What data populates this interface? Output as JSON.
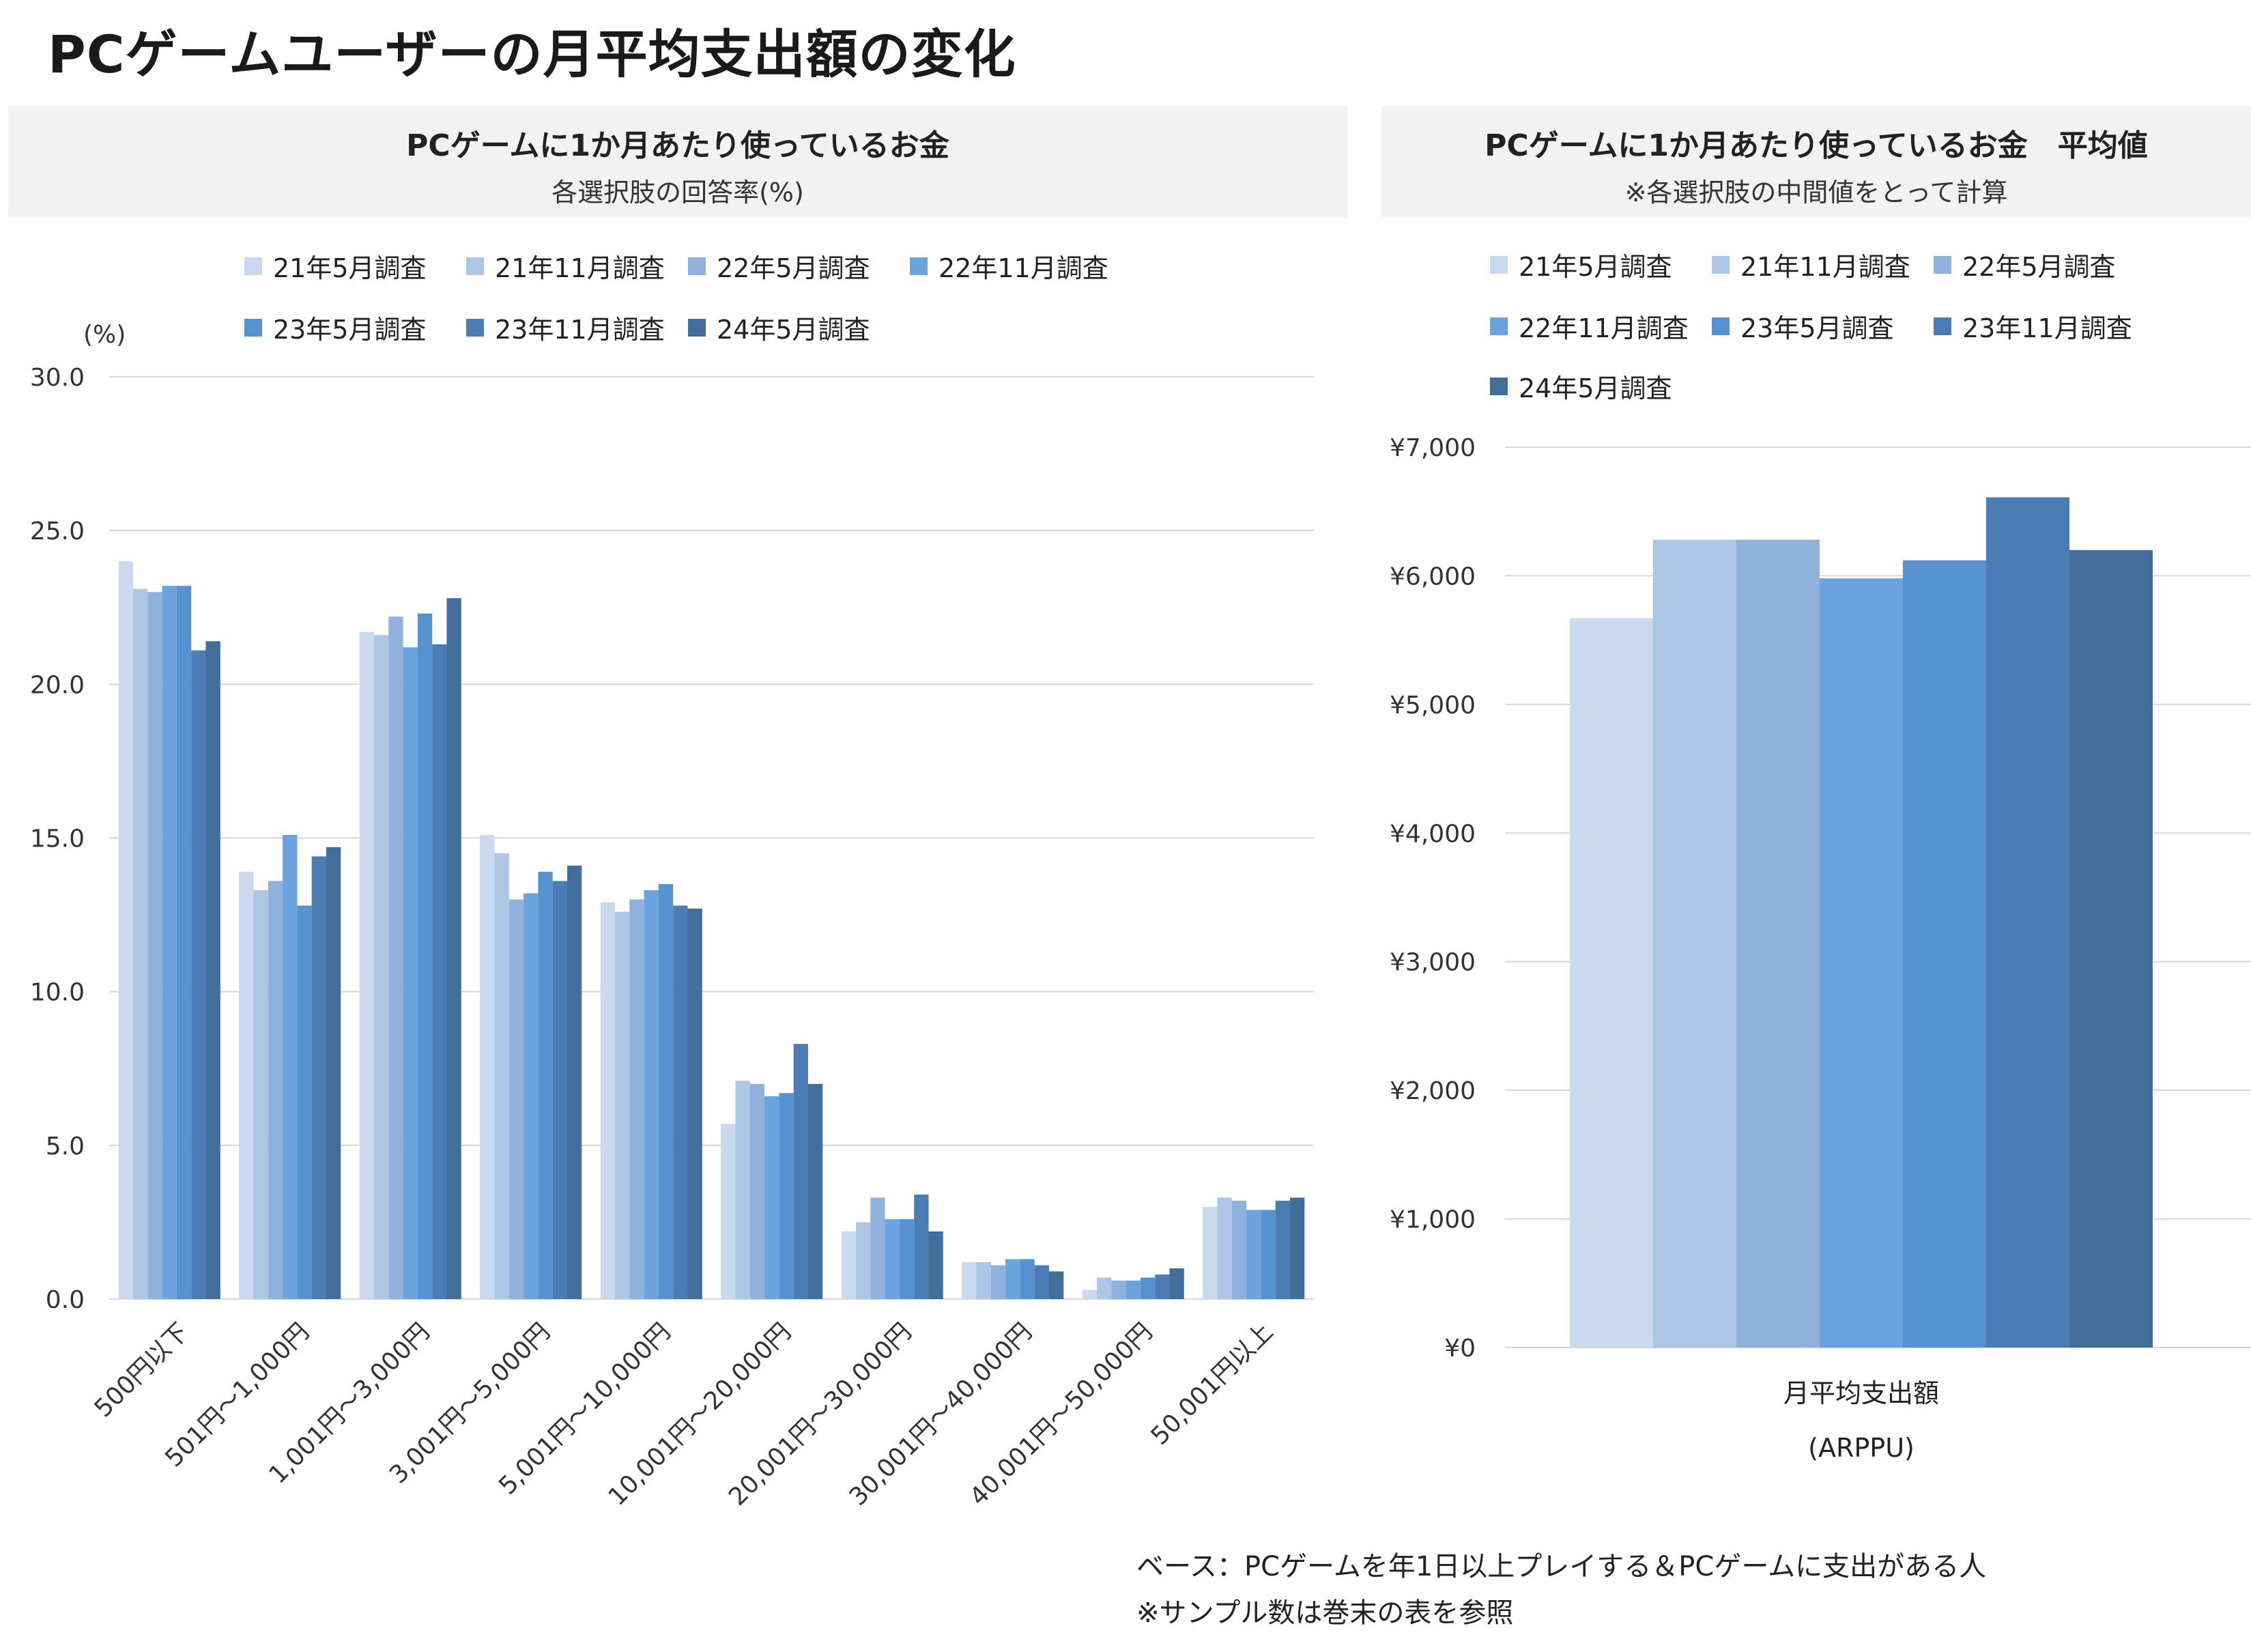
{
  "title": "PCゲームユーザーの月平均支出額の変化",
  "footnotes": {
    "base": "ベース：PCゲームを年1日以上プレイする＆PCゲームに支出がある人",
    "sample": "※サンプル数は巻末の表を参照"
  },
  "colors": [
    "#c9d9ee",
    "#adc6e6",
    "#8fb1dc",
    "#6aa3dd",
    "#5592cf",
    "#4b7db5",
    "#436e9c"
  ],
  "chart_data": [
    {
      "type": "bar",
      "title": "PCゲームに1か月あたり使っているお金",
      "subtitle": "各選択肢の回答率(%)",
      "unit_label": "(%)",
      "categories": [
        "500円以下",
        "501円～1,000円",
        "1,001円～3,000円",
        "3,001円～5,000円",
        "5,001円～10,000円",
        "10,001円～20,000円",
        "20,001円～30,000円",
        "30,001円～40,000円",
        "40,001円～50,000円",
        "50,001円以上"
      ],
      "ylim": [
        0,
        30
      ],
      "yticks": [
        0,
        5,
        10,
        15,
        20,
        25,
        30
      ],
      "ytick_labels": [
        "0.0",
        "5.0",
        "10.0",
        "15.0",
        "20.0",
        "25.0",
        "30.0"
      ],
      "grid": true,
      "legend_position": "top",
      "series": [
        {
          "name": "21年5月調査",
          "values": [
            24.0,
            13.9,
            21.7,
            15.1,
            12.9,
            5.7,
            2.2,
            1.2,
            0.3,
            3.0
          ]
        },
        {
          "name": "21年11月調査",
          "values": [
            23.1,
            13.3,
            21.6,
            14.5,
            12.6,
            7.1,
            2.5,
            1.2,
            0.7,
            3.3
          ]
        },
        {
          "name": "22年5月調査",
          "values": [
            23.0,
            13.6,
            22.2,
            13.0,
            13.0,
            7.0,
            3.3,
            1.1,
            0.6,
            3.2
          ]
        },
        {
          "name": "22年11月調査",
          "values": [
            23.2,
            15.1,
            21.2,
            13.2,
            13.3,
            6.6,
            2.6,
            1.3,
            0.6,
            2.9
          ]
        },
        {
          "name": "23年5月調査",
          "values": [
            23.2,
            12.8,
            22.3,
            13.9,
            13.5,
            6.7,
            2.6,
            1.3,
            0.7,
            2.9
          ]
        },
        {
          "name": "23年11月調査",
          "values": [
            21.1,
            14.4,
            21.3,
            13.6,
            12.8,
            8.3,
            3.4,
            1.1,
            0.8,
            3.2
          ]
        },
        {
          "name": "24年5月調査",
          "values": [
            21.4,
            14.7,
            22.8,
            14.1,
            12.7,
            7.0,
            2.2,
            0.9,
            1.0,
            3.3
          ]
        }
      ]
    },
    {
      "type": "bar",
      "title": "PCゲームに1か月あたり使っているお金　平均値",
      "subtitle": "※各選択肢の中間値をとって計算",
      "categories": [
        "月平均支出額"
      ],
      "category_sub": "(ARPPU)",
      "ylim": [
        0,
        7000
      ],
      "yticks": [
        0,
        1000,
        2000,
        3000,
        4000,
        5000,
        6000,
        7000
      ],
      "ytick_labels": [
        "¥0",
        "¥1,000",
        "¥2,000",
        "¥3,000",
        "¥4,000",
        "¥5,000",
        "¥6,000",
        "¥7,000"
      ],
      "grid": true,
      "legend_position": "top",
      "series": [
        {
          "name": "21年5月調査",
          "values": [
            5670
          ]
        },
        {
          "name": "21年11月調査",
          "values": [
            6280
          ]
        },
        {
          "name": "22年5月調査",
          "values": [
            6280
          ]
        },
        {
          "name": "22年11月調査",
          "values": [
            5980
          ]
        },
        {
          "name": "23年5月調査",
          "values": [
            6120
          ]
        },
        {
          "name": "23年11月調査",
          "values": [
            6610
          ]
        },
        {
          "name": "24年5月調査",
          "values": [
            6200
          ]
        }
      ]
    }
  ]
}
